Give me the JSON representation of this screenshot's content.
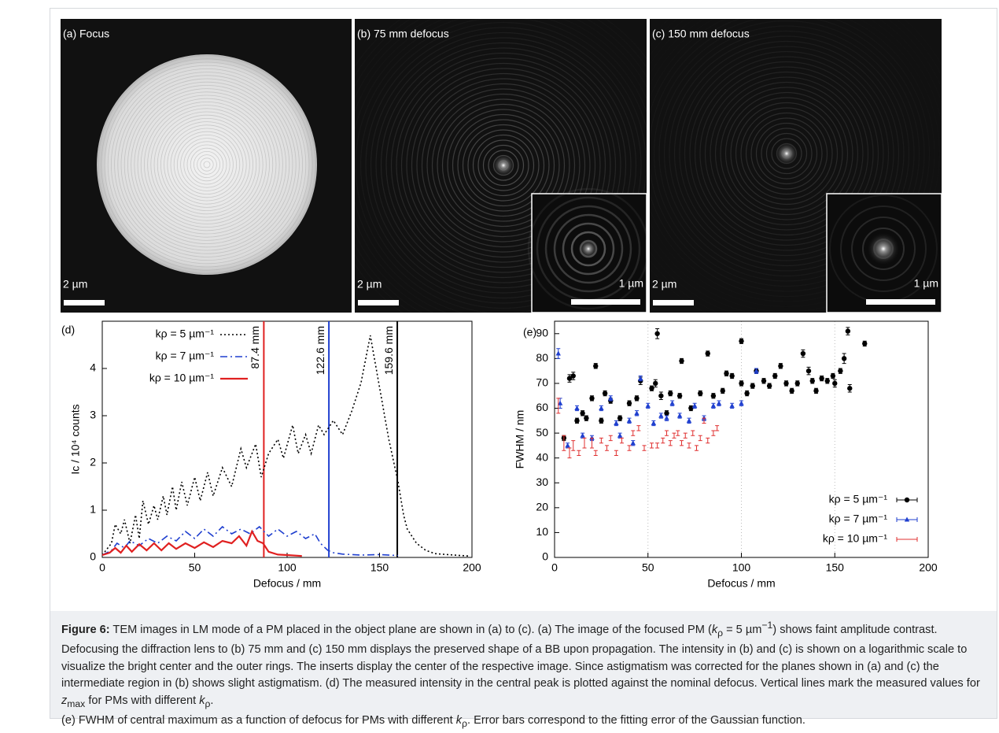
{
  "panels": [
    {
      "label": "(a) Focus",
      "scale": "2 µm"
    },
    {
      "label": "(b) 75 mm defocus",
      "scale": "2 µm",
      "inset_scale": "1 µm"
    },
    {
      "label": "(c) 150 mm defocus",
      "scale": "2 µm",
      "inset_scale": "1 µm"
    }
  ],
  "chart_data": [
    {
      "type": "line",
      "panel_label": "(d)",
      "x_label": "Defocus / mm",
      "y_label": "Ic / 10⁴ counts",
      "xlim": [
        0,
        200
      ],
      "xticks": [
        0,
        50,
        100,
        150,
        200
      ],
      "ylim": [
        0,
        5
      ],
      "yticks": [
        0,
        1,
        2,
        3,
        4
      ],
      "legend": "upper left",
      "series": [
        {
          "name": "kρ = 5 µm⁻¹",
          "color": "#000000",
          "dash": "dotted",
          "x": [
            0,
            5,
            7,
            10,
            12,
            15,
            18,
            20,
            22,
            25,
            28,
            30,
            33,
            35,
            38,
            40,
            43,
            46,
            50,
            53,
            57,
            60,
            65,
            70,
            75,
            78,
            80,
            83,
            86,
            90,
            95,
            98,
            103,
            106,
            110,
            113,
            117,
            120,
            125,
            130,
            135,
            140,
            145,
            150,
            155,
            160,
            163,
            165,
            170,
            175,
            180,
            190,
            198
          ],
          "values": [
            0.05,
            0.3,
            0.7,
            0.5,
            0.8,
            0.3,
            0.9,
            0.4,
            1.2,
            0.7,
            1.1,
            0.8,
            1.3,
            0.9,
            1.5,
            1.0,
            1.6,
            1.1,
            1.7,
            1.2,
            1.8,
            1.3,
            1.9,
            1.5,
            2.3,
            1.9,
            2.1,
            2.4,
            1.7,
            2.2,
            2.5,
            2.1,
            2.8,
            2.2,
            2.6,
            2.2,
            2.8,
            2.6,
            2.9,
            2.6,
            3.1,
            3.7,
            4.7,
            3.6,
            2.5,
            1.6,
            0.9,
            0.6,
            0.3,
            0.15,
            0.08,
            0.05,
            0.03
          ]
        },
        {
          "name": "kρ = 7 µm⁻¹",
          "color": "#1f3fcf",
          "dash": "dashdot",
          "x": [
            0,
            5,
            8,
            12,
            15,
            20,
            25,
            30,
            35,
            40,
            45,
            50,
            55,
            60,
            65,
            70,
            75,
            80,
            85,
            90,
            95,
            100,
            105,
            110,
            115,
            118,
            122,
            125,
            130,
            140,
            150,
            160
          ],
          "values": [
            0.05,
            0.15,
            0.3,
            0.2,
            0.35,
            0.25,
            0.4,
            0.3,
            0.45,
            0.35,
            0.55,
            0.4,
            0.6,
            0.45,
            0.65,
            0.5,
            0.6,
            0.5,
            0.65,
            0.45,
            0.6,
            0.45,
            0.55,
            0.4,
            0.5,
            0.3,
            0.15,
            0.1,
            0.07,
            0.05,
            0.06,
            0.04
          ]
        },
        {
          "name": "kρ = 10 µm⁻¹",
          "color": "#e02020",
          "dash": "solid",
          "x": [
            0,
            4,
            7,
            10,
            13,
            16,
            20,
            24,
            28,
            32,
            36,
            40,
            45,
            50,
            55,
            60,
            65,
            70,
            74,
            78,
            81,
            84,
            87,
            90,
            95,
            100,
            108
          ],
          "values": [
            0.05,
            0.1,
            0.2,
            0.1,
            0.25,
            0.12,
            0.28,
            0.15,
            0.3,
            0.15,
            0.3,
            0.18,
            0.3,
            0.2,
            0.32,
            0.22,
            0.35,
            0.3,
            0.45,
            0.25,
            0.55,
            0.35,
            0.3,
            0.12,
            0.06,
            0.05,
            0.03
          ]
        }
      ],
      "vlines": [
        {
          "x": 87.4,
          "label": "87.4 mm",
          "color": "#e02020"
        },
        {
          "x": 122.6,
          "label": "122.6 mm",
          "color": "#1f3fcf"
        },
        {
          "x": 159.6,
          "label": "159.6 mm",
          "color": "#000000"
        }
      ]
    },
    {
      "type": "scatter",
      "panel_label": "(e)",
      "x_label": "Defocus / mm",
      "y_label": "FWHM / nm",
      "xlim": [
        0,
        200
      ],
      "xticks": [
        0,
        50,
        100,
        150,
        200
      ],
      "ylim": [
        0,
        95
      ],
      "yticks": [
        0,
        10,
        20,
        30,
        40,
        50,
        60,
        70,
        80,
        90
      ],
      "grid": "x",
      "legend": "lower right",
      "series": [
        {
          "name": "kρ = 5 µm⁻¹",
          "color": "#000000",
          "marker": "circle",
          "x": [
            5,
            8,
            10,
            12,
            15,
            17,
            20,
            22,
            25,
            27,
            30,
            35,
            40,
            44,
            46,
            52,
            54,
            55,
            57,
            60,
            62,
            67,
            68,
            73,
            78,
            82,
            85,
            90,
            92,
            95,
            100,
            100,
            103,
            106,
            108,
            112,
            115,
            118,
            121,
            124,
            127,
            130,
            133,
            136,
            138,
            140,
            143,
            146,
            149,
            150,
            153,
            155,
            157,
            158,
            166
          ],
          "values": [
            48,
            72,
            73,
            55,
            58,
            56,
            64,
            77,
            55,
            66,
            63,
            56,
            62,
            64,
            71,
            68,
            70,
            90,
            65,
            58,
            66,
            65,
            79,
            60,
            66,
            82,
            65,
            67,
            74,
            73,
            87,
            70,
            66,
            69,
            75,
            71,
            69,
            73,
            77,
            70,
            67,
            70,
            82,
            75,
            71,
            67,
            72,
            71,
            73,
            70,
            75,
            80,
            91,
            68,
            86
          ],
          "errors": [
            1,
            1.5,
            1.5,
            1,
            1,
            1,
            1,
            1,
            1,
            1,
            1,
            1,
            1,
            1,
            1.5,
            1,
            1.5,
            2,
            1.5,
            1,
            1,
            1,
            1,
            1,
            1,
            1,
            1,
            1,
            1,
            1,
            1,
            1,
            1,
            1,
            1,
            1,
            1,
            1,
            1,
            1,
            1,
            1,
            1.5,
            1.5,
            1,
            1,
            1,
            1,
            1,
            1.5,
            1,
            2,
            1.5,
            1.5,
            1
          ]
        },
        {
          "name": "kρ = 7 µm⁻¹",
          "color": "#1f3fcf",
          "marker": "triangle",
          "x": [
            2,
            3,
            7,
            12,
            15,
            20,
            25,
            30,
            33,
            35,
            40,
            42,
            44,
            46,
            50,
            53,
            57,
            60,
            63,
            67,
            72,
            75,
            80,
            85,
            88,
            95,
            100,
            108
          ],
          "values": [
            82,
            62,
            45,
            60,
            49,
            48,
            60,
            64,
            54,
            49,
            55,
            46,
            58,
            72,
            61,
            54,
            57,
            56,
            62,
            57,
            55,
            61,
            56,
            61,
            62,
            61,
            62,
            75
          ],
          "errors": [
            2,
            2,
            1,
            1,
            1,
            1,
            1,
            1,
            1,
            1,
            1,
            1,
            1,
            1,
            1,
            1,
            1,
            1,
            1,
            1,
            1,
            1,
            1,
            1,
            1,
            1,
            1,
            1
          ]
        },
        {
          "name": "kρ = 10 µm⁻¹",
          "color": "#e03030",
          "marker": "bar",
          "x": [
            2,
            5,
            8,
            10,
            13,
            16,
            20,
            22,
            25,
            28,
            30,
            33,
            36,
            40,
            42,
            45,
            48,
            52,
            55,
            58,
            60,
            62,
            64,
            66,
            68,
            70,
            72,
            74,
            76,
            78,
            80,
            82,
            85,
            87
          ],
          "values": [
            61,
            46,
            42,
            45,
            42,
            46,
            46,
            42,
            47,
            44,
            48,
            42,
            47,
            44,
            50,
            52,
            44,
            45,
            45,
            47,
            50,
            46,
            49,
            50,
            46,
            49,
            45,
            50,
            44,
            48,
            55,
            47,
            50,
            52
          ],
          "errors": [
            3,
            3,
            2,
            2,
            1,
            2,
            2,
            1,
            1,
            1,
            1,
            1,
            1,
            1,
            1,
            1,
            1,
            1,
            1,
            1,
            1,
            1,
            1,
            1,
            1,
            1,
            1,
            1,
            1,
            1,
            1,
            1,
            1,
            1
          ]
        }
      ]
    }
  ],
  "caption": [
    "Figure 6:",
    " TEM images in LM mode of a PM placed in the object plane are shown in (a) to (c). (a) The image of the focused PM (",
    "k",
    "ρ",
    " = 5 µm",
    "−1",
    ") shows faint amplitude contrast. Defocusing the diffraction lens to (b) 75 mm and (c) 150 mm displays the preserved shape of a BB upon propagation. The intensity in (b) and (c) is shown on a logarithmic scale to visualize the bright center and the outer rings. The inserts display the center of the respective image. Since astigmatism was corrected for the planes shown in (a) and (c) the intermediate region in (b) shows slight astigmatism. (d) The measured intensity in the central peak is plotted against the nominal defocus. Vertical lines mark the measured values for ",
    "z",
    "max",
    " for PMs with different ",
    "k",
    "ρ",
    ".",
    "(e) FWHM of central maximum as a function of defocus for PMs with different ",
    "k",
    "ρ",
    ". Error bars correspond to the fitting error of the Gaussian function."
  ]
}
